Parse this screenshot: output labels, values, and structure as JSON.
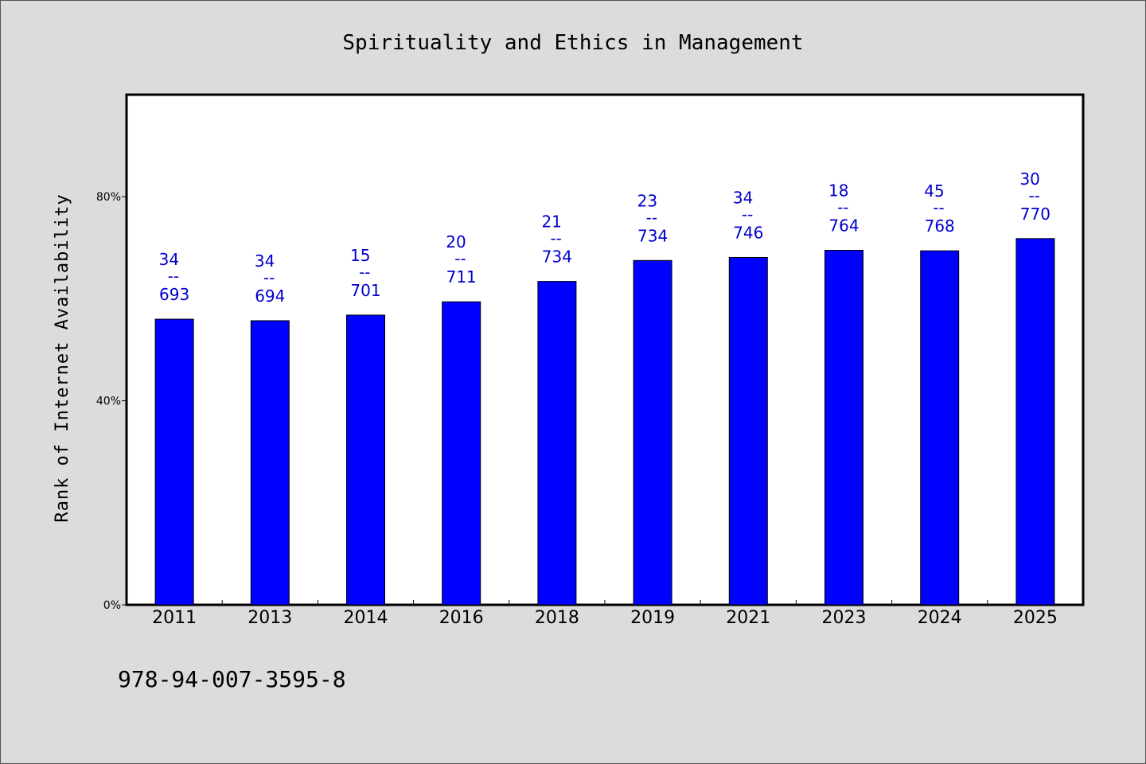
{
  "chart_data": {
    "type": "bar",
    "title": "Spirituality and Ethics in Management",
    "xlabel": "",
    "ylabel": "Rank of Internet Availability",
    "categories": [
      "2011",
      "2013",
      "2014",
      "2016",
      "2018",
      "2019",
      "2021",
      "2023",
      "2024",
      "2025"
    ],
    "values": [
      56.0,
      55.7,
      56.8,
      59.4,
      63.4,
      67.5,
      68.1,
      69.5,
      69.4,
      71.8
    ],
    "data_labels": [
      {
        "top": "34",
        "sep": "--",
        "bottom": "693"
      },
      {
        "top": "34",
        "sep": "--",
        "bottom": "694"
      },
      {
        "top": "15",
        "sep": "--",
        "bottom": "701"
      },
      {
        "top": "20",
        "sep": "--",
        "bottom": "711"
      },
      {
        "top": "21",
        "sep": "--",
        "bottom": "734"
      },
      {
        "top": "23",
        "sep": "--",
        "bottom": "734"
      },
      {
        "top": "34",
        "sep": "--",
        "bottom": "746"
      },
      {
        "top": "18",
        "sep": "--",
        "bottom": "764"
      },
      {
        "top": "45",
        "sep": "--",
        "bottom": "768"
      },
      {
        "top": "30",
        "sep": "--",
        "bottom": "770"
      }
    ],
    "yticks": [
      {
        "value": 0,
        "label": "0%"
      },
      {
        "value": 40,
        "label": "40%"
      },
      {
        "value": 80,
        "label": "80%"
      }
    ],
    "ylim": [
      0,
      100
    ],
    "grid": false,
    "bar_color": "#0000ff",
    "label_color": "#0000cc"
  },
  "footer": {
    "isbn": "978-94-007-3595-8"
  }
}
